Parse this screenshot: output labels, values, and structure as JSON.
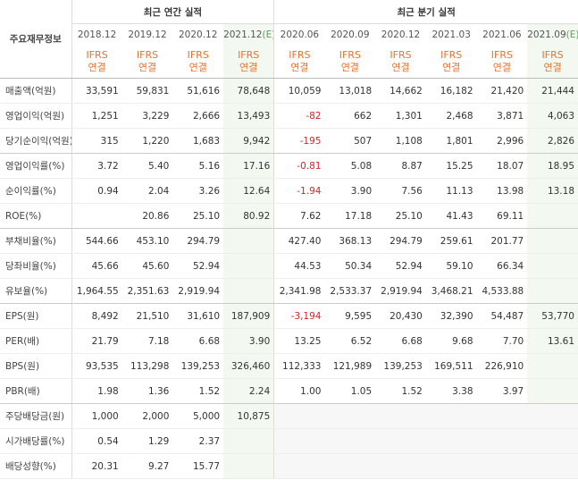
{
  "title": "주요재무정보",
  "estimate_label": "(E)",
  "groups": [
    {
      "label": "최근 연간 실적",
      "columns": [
        {
          "period": "2018.12",
          "basis": [
            "IFRS",
            "연결"
          ]
        },
        {
          "period": "2019.12",
          "basis": [
            "IFRS",
            "연결"
          ]
        },
        {
          "period": "2020.12",
          "basis": [
            "IFRS",
            "연결"
          ]
        },
        {
          "period": "2021.12",
          "estimate": true,
          "basis": [
            "IFRS",
            "연결"
          ]
        }
      ]
    },
    {
      "label": "최근 분기 실적",
      "columns": [
        {
          "period": "2020.06",
          "basis": [
            "IFRS",
            "연결"
          ]
        },
        {
          "period": "2020.09",
          "basis": [
            "IFRS",
            "연결"
          ]
        },
        {
          "period": "2020.12",
          "basis": [
            "IFRS",
            "연결"
          ]
        },
        {
          "period": "2021.03",
          "basis": [
            "IFRS",
            "연결"
          ]
        },
        {
          "period": "2021.06",
          "basis": [
            "IFRS",
            "연결"
          ]
        },
        {
          "period": "2021.09",
          "estimate": true,
          "basis": [
            "IFRS",
            "연결"
          ]
        }
      ]
    }
  ],
  "sections": [
    {
      "rows": [
        {
          "label": "매출액(억원)",
          "values": [
            "33,591",
            "59,831",
            "51,616",
            "78,648",
            "10,059",
            "13,018",
            "14,662",
            "16,182",
            "21,420",
            "21,444"
          ]
        },
        {
          "label": "영업이익(억원)",
          "values": [
            "1,251",
            "3,229",
            "2,666",
            "13,493",
            "-82",
            "662",
            "1,301",
            "2,468",
            "3,871",
            "4,063"
          ]
        },
        {
          "label": "당기순이익(억원)",
          "values": [
            "315",
            "1,220",
            "1,683",
            "9,942",
            "-195",
            "507",
            "1,108",
            "1,801",
            "2,996",
            "2,826"
          ]
        }
      ]
    },
    {
      "rows": [
        {
          "label": "영업이익률(%)",
          "values": [
            "3.72",
            "5.40",
            "5.16",
            "17.16",
            "-0.81",
            "5.08",
            "8.87",
            "15.25",
            "18.07",
            "18.95"
          ]
        },
        {
          "label": "순이익률(%)",
          "values": [
            "0.94",
            "2.04",
            "3.26",
            "12.64",
            "-1.94",
            "3.90",
            "7.56",
            "11.13",
            "13.98",
            "13.18"
          ]
        },
        {
          "label": "ROE(%)",
          "values": [
            null,
            "20.86",
            "25.10",
            "80.92",
            "7.62",
            "17.18",
            "25.10",
            "41.43",
            "69.11",
            null
          ]
        }
      ]
    },
    {
      "rows": [
        {
          "label": "부채비율(%)",
          "values": [
            "544.66",
            "453.10",
            "294.79",
            null,
            "427.40",
            "368.13",
            "294.79",
            "259.61",
            "201.77",
            null
          ]
        },
        {
          "label": "당좌비율(%)",
          "values": [
            "45.66",
            "45.60",
            "52.94",
            null,
            "44.53",
            "50.34",
            "52.94",
            "59.10",
            "66.34",
            null
          ]
        },
        {
          "label": "유보율(%)",
          "values": [
            "1,964.55",
            "2,351.63",
            "2,919.94",
            null,
            "2,341.98",
            "2,533.37",
            "2,919.94",
            "3,468.21",
            "4,533.88",
            null
          ]
        }
      ]
    },
    {
      "rows": [
        {
          "label": "EPS(원)",
          "values": [
            "8,492",
            "21,510",
            "31,610",
            "187,909",
            "-3,194",
            "9,595",
            "20,430",
            "32,390",
            "54,487",
            "53,770"
          ]
        },
        {
          "label": "PER(배)",
          "values": [
            "21.79",
            "7.18",
            "6.68",
            "3.90",
            "13.25",
            "6.52",
            "6.68",
            "9.68",
            "7.70",
            "13.61"
          ]
        },
        {
          "label": "BPS(원)",
          "values": [
            "93,535",
            "113,298",
            "139,253",
            "326,460",
            "112,333",
            "121,989",
            "139,253",
            "169,511",
            "226,910",
            null
          ]
        },
        {
          "label": "PBR(배)",
          "values": [
            "1.98",
            "1.36",
            "1.52",
            "2.24",
            "1.00",
            "1.05",
            "1.52",
            "3.38",
            "3.97",
            null
          ]
        }
      ]
    },
    {
      "rows": [
        {
          "label": "주당배당금(원)",
          "values": [
            "1,000",
            "2,000",
            "5,000",
            "10,875",
            null,
            null,
            null,
            null,
            null,
            null
          ]
        },
        {
          "label": "시가배당률(%)",
          "values": [
            "0.54",
            "1.29",
            "2.37",
            null,
            null,
            null,
            null,
            null,
            null,
            null
          ]
        },
        {
          "label": "배당성향(%)",
          "values": [
            "20.31",
            "9.27",
            "15.77",
            null,
            null,
            null,
            null,
            null,
            null,
            null
          ]
        }
      ]
    }
  ]
}
